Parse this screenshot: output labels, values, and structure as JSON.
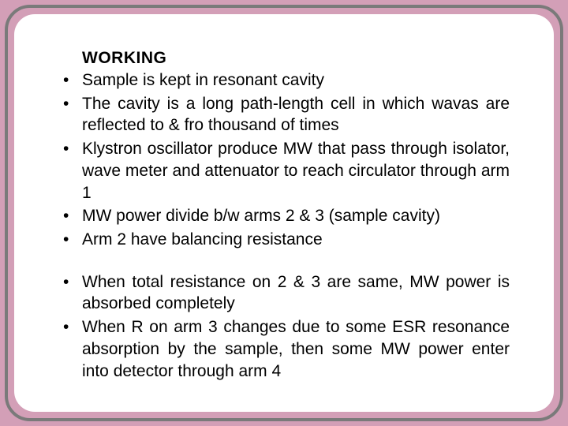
{
  "slide": {
    "background_color": "#d39fb7",
    "outer_border_color": "#7a7a7a",
    "panel_background": "#ffffff",
    "text_color": "#000000",
    "heading": "WORKING",
    "heading_fontsize": 21,
    "body_fontsize": 21,
    "bullets_group1": [
      "Sample is kept in resonant cavity",
      "The cavity is a long path-length cell in which wavas are reflected to & fro thousand of times",
      "Klystron oscillator produce MW that pass through isolator, wave meter and attenuator to reach circulator through arm 1",
      "MW power divide b/w arms 2 & 3 (sample cavity)",
      "Arm 2 have balancing resistance"
    ],
    "bullets_group2": [
      "When total resistance on 2 & 3 are same, MW power is absorbed completely",
      "When R on arm 3 changes due to some ESR resonance absorption by the sample, then some MW power enter into detector through arm 4"
    ]
  }
}
